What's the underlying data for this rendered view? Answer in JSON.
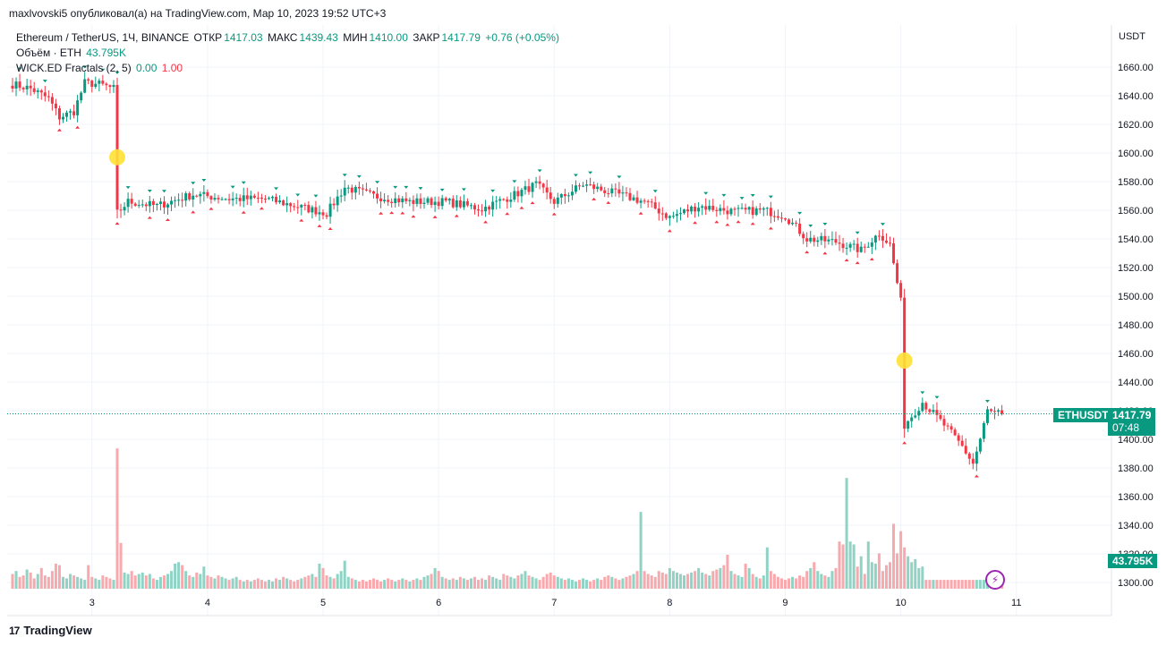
{
  "header": {
    "published": "maxlvovski5 опубликовал(а) на TradingView.com, Мар 10, 2023 19:52 UTC+3"
  },
  "legend": {
    "symbol": "Ethereum / TetherUS, 1Ч, BINANCE",
    "open_label": "ОТКР",
    "open": "1417.03",
    "high_label": "МАКС",
    "high": "1439.43",
    "low_label": "МИН",
    "low": "1410.00",
    "close_label": "ЗАКР",
    "close": "1417.79",
    "change": "+0.76 (+0.05%)",
    "volume_label": "Объём · ETH",
    "volume": "43.795K",
    "fractals_label": "WICK.ED Fractals (2, 5)",
    "fractals_v1": "0.00",
    "fractals_v2": "1.00"
  },
  "price_tag": {
    "symbol": "ETHUSDT",
    "price": "1417.79",
    "countdown": "07:48"
  },
  "volume_tag": "43.795K",
  "brand": {
    "logo": "17",
    "name": "TradingView"
  },
  "colors": {
    "up": "#089981",
    "down": "#f23645",
    "up_vol": "#8fd3c5",
    "down_vol": "#f7a9ae",
    "highlight": "#ffe135",
    "grid": "#f0f3fa"
  },
  "icons": {
    "brand": "tradingview-logo-icon",
    "alert": "lightning-icon"
  },
  "chart_data": {
    "type": "candlestick",
    "currency": "USDT",
    "y_ticks": [
      1300,
      1320,
      1340,
      1360,
      1380,
      1400,
      1420,
      1440,
      1460,
      1480,
      1500,
      1520,
      1540,
      1560,
      1580,
      1600,
      1620,
      1640,
      1660
    ],
    "x_ticks": [
      "3",
      "4",
      "5",
      "6",
      "7",
      "8",
      "9",
      "10",
      "11"
    ],
    "x_tick_index": [
      22,
      54,
      86,
      118,
      150,
      182,
      214,
      246,
      278
    ],
    "ylim": [
      1293,
      1675
    ],
    "last_price": 1417.79,
    "highlights": [
      {
        "index": 29,
        "price": 1597
      },
      {
        "index": 247,
        "price": 1455
      }
    ],
    "anchors": [
      [
        0,
        1648
      ],
      [
        5,
        1645
      ],
      [
        10,
        1638
      ],
      [
        13,
        1625
      ],
      [
        17,
        1629
      ],
      [
        20,
        1649
      ],
      [
        24,
        1648
      ],
      [
        28,
        1645
      ],
      [
        29,
        1558
      ],
      [
        32,
        1566
      ],
      [
        40,
        1563
      ],
      [
        50,
        1571
      ],
      [
        60,
        1568
      ],
      [
        70,
        1568
      ],
      [
        80,
        1562
      ],
      [
        87,
        1558
      ],
      [
        92,
        1576
      ],
      [
        100,
        1570
      ],
      [
        110,
        1566
      ],
      [
        120,
        1566
      ],
      [
        130,
        1561
      ],
      [
        140,
        1572
      ],
      [
        145,
        1578
      ],
      [
        150,
        1566
      ],
      [
        158,
        1578
      ],
      [
        165,
        1573
      ],
      [
        175,
        1566
      ],
      [
        182,
        1555
      ],
      [
        190,
        1563
      ],
      [
        200,
        1559
      ],
      [
        208,
        1560
      ],
      [
        214,
        1556
      ],
      [
        220,
        1540
      ],
      [
        228,
        1538
      ],
      [
        235,
        1532
      ],
      [
        240,
        1544
      ],
      [
        243,
        1536
      ],
      [
        246,
        1496
      ],
      [
        247,
        1410
      ],
      [
        252,
        1426
      ],
      [
        258,
        1410
      ],
      [
        263,
        1395
      ],
      [
        266,
        1383
      ],
      [
        268,
        1400
      ],
      [
        270,
        1420
      ],
      [
        272,
        1418
      ]
    ],
    "volume_base": [
      10,
      12,
      8,
      9,
      13,
      11,
      7,
      10,
      14,
      9,
      8,
      12,
      17,
      16,
      8,
      7,
      10,
      9,
      8,
      7,
      6,
      16,
      8,
      7,
      6,
      9,
      8,
      7,
      6,
      95,
      31,
      11,
      10,
      12,
      9,
      10,
      11,
      9,
      10,
      7,
      6,
      8,
      9,
      10,
      12,
      17,
      18,
      16,
      12,
      9,
      8,
      11,
      10,
      15,
      9,
      8,
      7,
      9,
      8,
      7,
      6,
      7,
      8,
      6,
      5,
      6,
      5,
      6,
      7,
      6,
      5,
      6,
      5,
      7,
      6,
      8,
      7,
      6,
      5,
      6,
      7,
      8,
      9,
      10,
      8,
      17,
      14,
      9,
      8,
      7,
      10,
      12,
      19,
      8,
      7,
      6,
      5,
      6,
      5,
      6,
      7,
      6,
      5,
      6,
      7,
      6,
      5,
      6,
      7,
      6,
      5,
      6,
      7,
      6,
      8,
      9,
      10,
      14,
      12,
      8,
      7,
      6,
      7,
      6,
      8,
      7,
      6,
      7,
      8,
      6,
      7,
      6,
      9,
      8,
      7,
      6,
      10,
      9,
      8,
      7,
      9,
      10,
      12,
      9,
      8,
      7,
      6,
      8,
      10,
      11,
      9,
      8,
      7,
      6,
      7,
      6,
      5,
      6,
      7,
      6,
      5,
      6,
      7,
      6,
      8,
      9,
      8,
      7,
      6,
      7,
      8,
      9,
      10,
      12,
      52,
      12,
      10,
      9,
      8,
      12,
      11,
      10,
      14,
      12,
      11,
      10,
      9,
      10,
      11,
      12,
      14,
      11,
      10,
      9,
      12,
      13,
      14,
      16,
      23,
      12,
      10,
      9,
      8,
      17,
      14,
      10,
      8,
      7,
      9,
      28,
      12,
      10,
      8,
      7,
      6,
      7,
      8,
      7,
      9,
      8,
      12,
      14,
      18,
      12,
      10,
      9,
      8,
      12,
      14,
      32,
      30,
      75,
      32,
      30,
      15,
      22,
      10,
      32,
      18,
      17,
      24,
      12,
      16,
      18,
      44,
      24,
      39,
      28,
      22,
      18,
      20,
      14,
      15
    ]
  }
}
